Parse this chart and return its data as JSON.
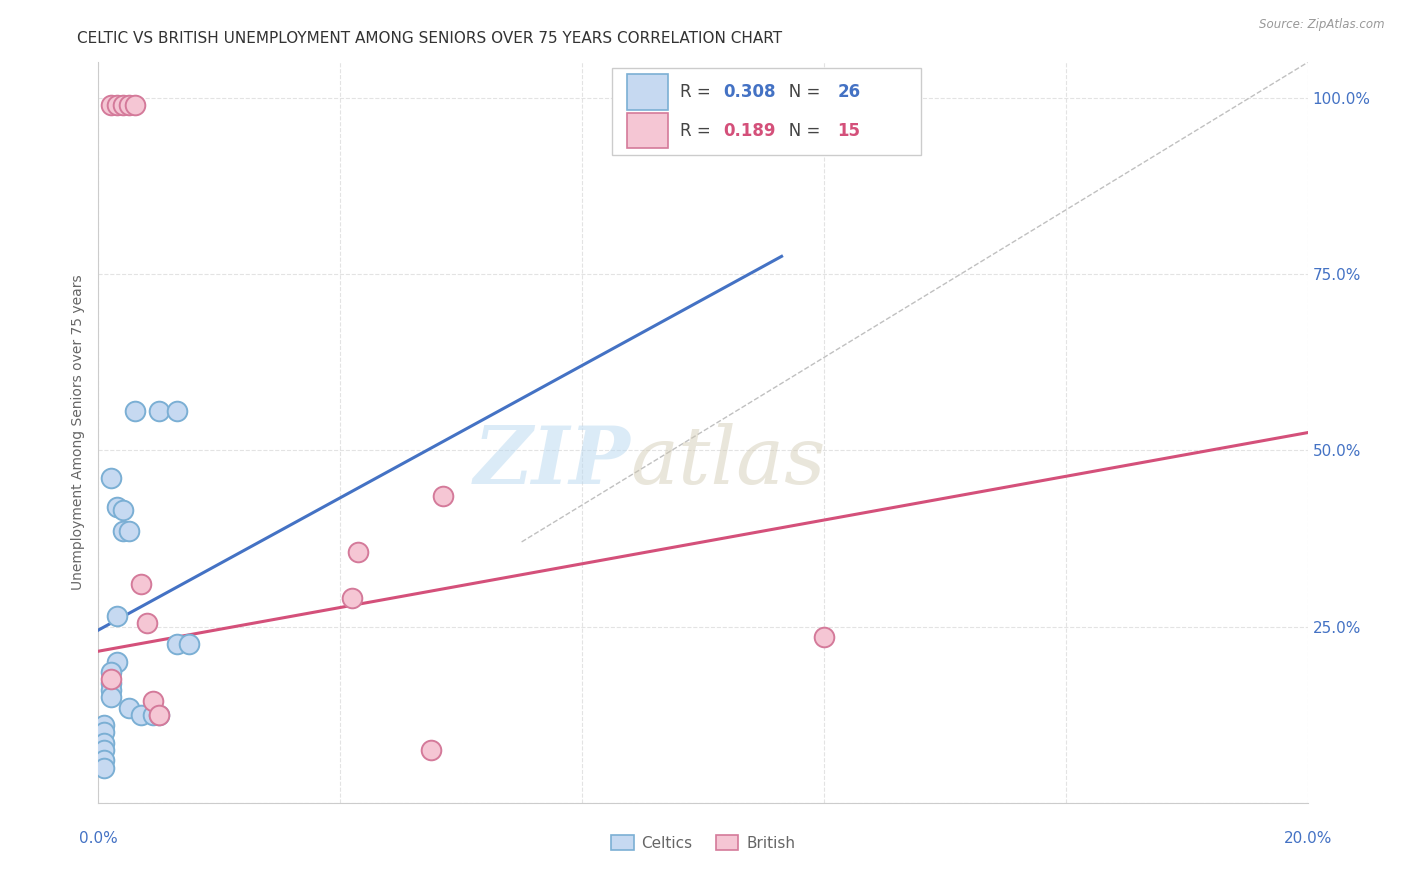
{
  "title": "CELTIC VS BRITISH UNEMPLOYMENT AMONG SENIORS OVER 75 YEARS CORRELATION CHART",
  "source": "Source: ZipAtlas.com",
  "ylabel": "Unemployment Among Seniors over 75 years",
  "xlim": [
    0.0,
    0.2
  ],
  "ylim": [
    0.0,
    1.05
  ],
  "yticks": [
    0.0,
    0.25,
    0.5,
    0.75,
    1.0
  ],
  "yticklabels_right": [
    "",
    "25.0%",
    "50.0%",
    "75.0%",
    "100.0%"
  ],
  "xtick_first": "0.0%",
  "xtick_last": "20.0%",
  "background_color": "#ffffff",
  "grid_color": "#e0e0e0",
  "watermark_zip": "ZIP",
  "watermark_atlas": "atlas",
  "celtic_fill": "#c6d9f1",
  "celtic_edge": "#7bafd4",
  "british_fill": "#f5c6d4",
  "british_edge": "#d47a9a",
  "celtic_R": "0.308",
  "celtic_N": "26",
  "british_R": "0.189",
  "british_N": "15",
  "color_celtic_accent": "#4472c4",
  "color_british_accent": "#d4507a",
  "celtic_scatter_x": [
    0.006,
    0.01,
    0.013,
    0.002,
    0.003,
    0.004,
    0.004,
    0.005,
    0.003,
    0.003,
    0.002,
    0.002,
    0.002,
    0.002,
    0.005,
    0.007,
    0.009,
    0.01,
    0.013,
    0.015,
    0.001,
    0.001,
    0.001,
    0.001,
    0.001,
    0.001
  ],
  "celtic_scatter_y": [
    0.555,
    0.555,
    0.555,
    0.46,
    0.42,
    0.415,
    0.385,
    0.385,
    0.265,
    0.2,
    0.185,
    0.17,
    0.16,
    0.15,
    0.135,
    0.125,
    0.125,
    0.125,
    0.225,
    0.225,
    0.11,
    0.1,
    0.085,
    0.075,
    0.06,
    0.05
  ],
  "british_scatter_x": [
    0.002,
    0.003,
    0.004,
    0.005,
    0.006,
    0.007,
    0.008,
    0.009,
    0.01,
    0.042,
    0.043,
    0.057,
    0.12,
    0.055,
    0.002
  ],
  "british_scatter_y": [
    0.99,
    0.99,
    0.99,
    0.99,
    0.99,
    0.31,
    0.255,
    0.145,
    0.125,
    0.29,
    0.355,
    0.435,
    0.235,
    0.075,
    0.175
  ],
  "celtic_line_x": [
    0.0,
    0.113
  ],
  "celtic_line_y": [
    0.245,
    0.775
  ],
  "british_line_x": [
    0.0,
    0.2
  ],
  "british_line_y": [
    0.215,
    0.525
  ],
  "ref_line_x": [
    0.07,
    0.2
  ],
  "ref_line_y": [
    0.37,
    1.05
  ],
  "scatter_size": 200
}
